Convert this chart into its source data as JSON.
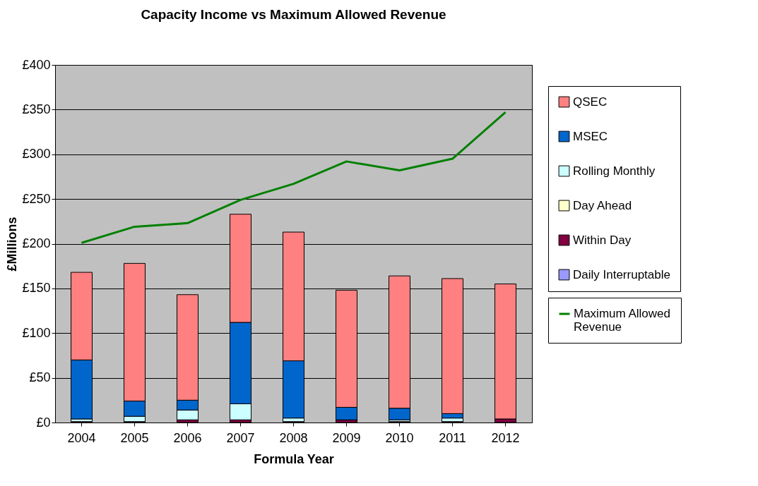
{
  "chart_data": {
    "type": "bar",
    "title": "Capacity Income vs Maximum Allowed Revenue",
    "xlabel": "Formula Year",
    "ylabel": "£Millions",
    "categories": [
      "2004",
      "2005",
      "2006",
      "2007",
      "2008",
      "2009",
      "2010",
      "2011",
      "2012"
    ],
    "stacked": true,
    "grid": "y",
    "legend": "right",
    "ylim": [
      0,
      400
    ],
    "yticks": [
      {
        "value": 0,
        "label": "£0"
      },
      {
        "value": 50,
        "label": "£50"
      },
      {
        "value": 100,
        "label": "£100"
      },
      {
        "value": 150,
        "label": "£150"
      },
      {
        "value": 200,
        "label": "£200"
      },
      {
        "value": 250,
        "label": "£250"
      },
      {
        "value": 300,
        "label": "£300"
      },
      {
        "value": 350,
        "label": "£350"
      },
      {
        "value": 400,
        "label": "£400"
      }
    ],
    "series": [
      {
        "name": "Daily Interruptable",
        "color": "#9999ff",
        "values": [
          null,
          null,
          null,
          null,
          null,
          null,
          null,
          null,
          null
        ]
      },
      {
        "name": "Within Day",
        "color": "#800040",
        "values": [
          1,
          1,
          3,
          3,
          1,
          3,
          1,
          1,
          4
        ]
      },
      {
        "name": "Day Ahead",
        "color": "#ffffcc",
        "values": [
          null,
          null,
          null,
          null,
          null,
          null,
          null,
          null,
          null
        ]
      },
      {
        "name": "Rolling Monthly",
        "color": "#ccffff",
        "values": [
          3,
          6,
          11,
          18,
          4,
          null,
          2,
          4,
          null
        ]
      },
      {
        "name": "MSEC",
        "color": "#0066cc",
        "values": [
          66,
          17,
          11,
          91,
          64,
          14,
          13,
          5,
          null
        ]
      },
      {
        "name": "QSEC",
        "color": "#ff8080",
        "values": [
          98,
          154,
          118,
          121,
          144,
          131,
          148,
          151,
          151
        ]
      },
      {
        "name": "Maximum Allowed Revenue",
        "color": "#008000",
        "type": "line",
        "values": [
          201,
          219,
          223,
          249,
          267,
          292,
          282,
          295,
          347
        ]
      }
    ]
  }
}
